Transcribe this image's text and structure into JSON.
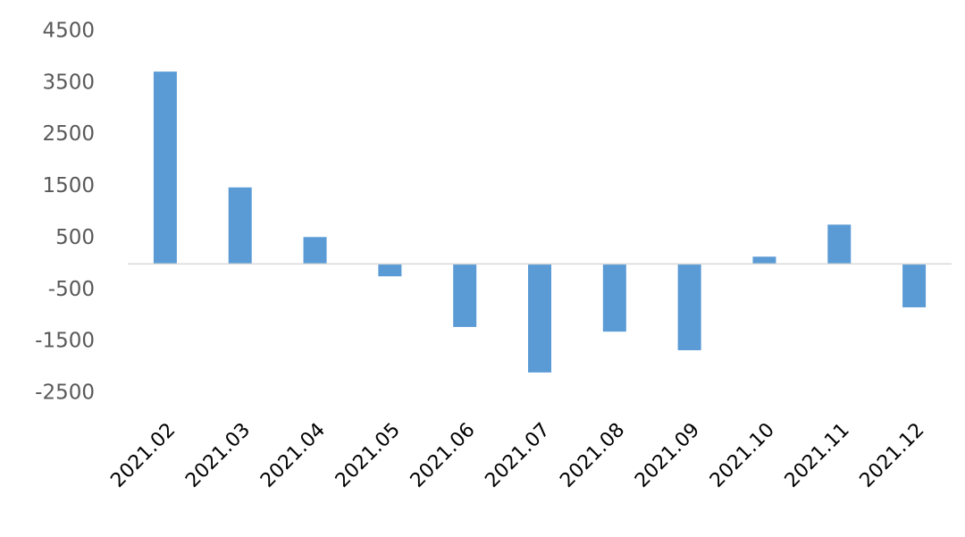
{
  "chart_data": {
    "type": "bar",
    "categories": [
      "2021.02",
      "2021.03",
      "2021.04",
      "2021.05",
      "2021.06",
      "2021.07",
      "2021.08",
      "2021.09",
      "2021.10",
      "2021.11",
      "2021.12"
    ],
    "values": [
      3720,
      1480,
      520,
      -240,
      -1220,
      -2100,
      -1310,
      -1670,
      140,
      760,
      -840
    ],
    "color": "#5b9bd5",
    "ylim": [
      -2500,
      4500
    ],
    "yticks": [
      4500,
      3500,
      2500,
      1500,
      500,
      -500,
      -1500,
      -2500
    ],
    "grid": false
  }
}
